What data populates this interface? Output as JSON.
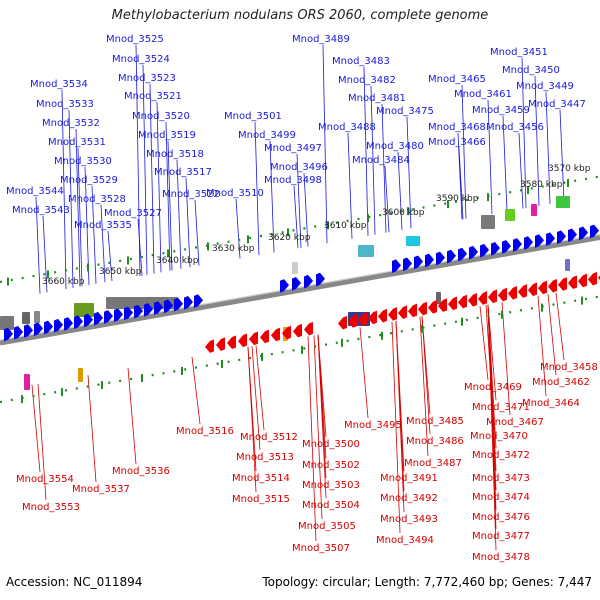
{
  "title": "Methylobacterium nodulans ORS 2060, complete genome",
  "footer": {
    "accession": "Accession: NC_011894",
    "summary": "Topology: circular; Length: 7,772,460 bp; Genes: 7,447"
  },
  "colors": {
    "forward_label": "#1a1adb",
    "reverse_label": "#d40000",
    "forward_gene": "#0000ee",
    "reverse_gene": "#ee0000",
    "scale_tick": "#228b22",
    "backbone": "#888888"
  },
  "scale_labels": [
    "3570 kbp",
    "3580 kbp",
    "3590 kbp",
    "3600 kbp",
    "3610 kbp",
    "3620 kbp",
    "3630 kbp",
    "3640 kbp",
    "3650 kbp",
    "3660 kbp"
  ],
  "forward_genes": [
    "Mnod_3544",
    "Mnod_3543",
    "Mnod_3534",
    "Mnod_3533",
    "Mnod_3532",
    "Mnod_3531",
    "Mnod_3530",
    "Mnod_3529",
    "Mnod_3528",
    "Mnod_3535",
    "Mnod_3525",
    "Mnod_3524",
    "Mnod_3523",
    "Mnod_3521",
    "Mnod_3520",
    "Mnod_3519",
    "Mnod_3518",
    "Mnod_3517",
    "Mnod_3522",
    "Mnod_3527",
    "Mnod_3510",
    "Mnod_3501",
    "Mnod_3499",
    "Mnod_3497",
    "Mnod_3496",
    "Mnod_3498",
    "Mnod_3489",
    "Mnod_3483",
    "Mnod_3482",
    "Mnod_3481",
    "Mnod_3488",
    "Mnod_3475",
    "Mnod_3480",
    "Mnod_3484",
    "Mnod_3465",
    "Mnod_3468",
    "Mnod_3466",
    "Mnod_3451",
    "Mnod_3450",
    "Mnod_3461",
    "Mnod_3449",
    "Mnod_3459",
    "Mnod_3447",
    "Mnod_3456"
  ],
  "reverse_genes": [
    "Mnod_3458",
    "Mnod_3462",
    "Mnod_3469",
    "Mnod_3464",
    "Mnod_3471",
    "Mnod_3467",
    "Mnod_3470",
    "Mnod_3472",
    "Mnod_3473",
    "Mnod_3474",
    "Mnod_3476",
    "Mnod_3477",
    "Mnod_3478",
    "Mnod_3485",
    "Mnod_3486",
    "Mnod_3495",
    "Mnod_3487",
    "Mnod_3491",
    "Mnod_3492",
    "Mnod_3493",
    "Mnod_3494",
    "Mnod_3516",
    "Mnod_3512",
    "Mnod_3500",
    "Mnod_3513",
    "Mnod_3502",
    "Mnod_3514",
    "Mnod_3503",
    "Mnod_3515",
    "Mnod_3504",
    "Mnod_3505",
    "Mnod_3507",
    "Mnod_3536",
    "Mnod_3554",
    "Mnod_3537",
    "Mnod_3553"
  ]
}
